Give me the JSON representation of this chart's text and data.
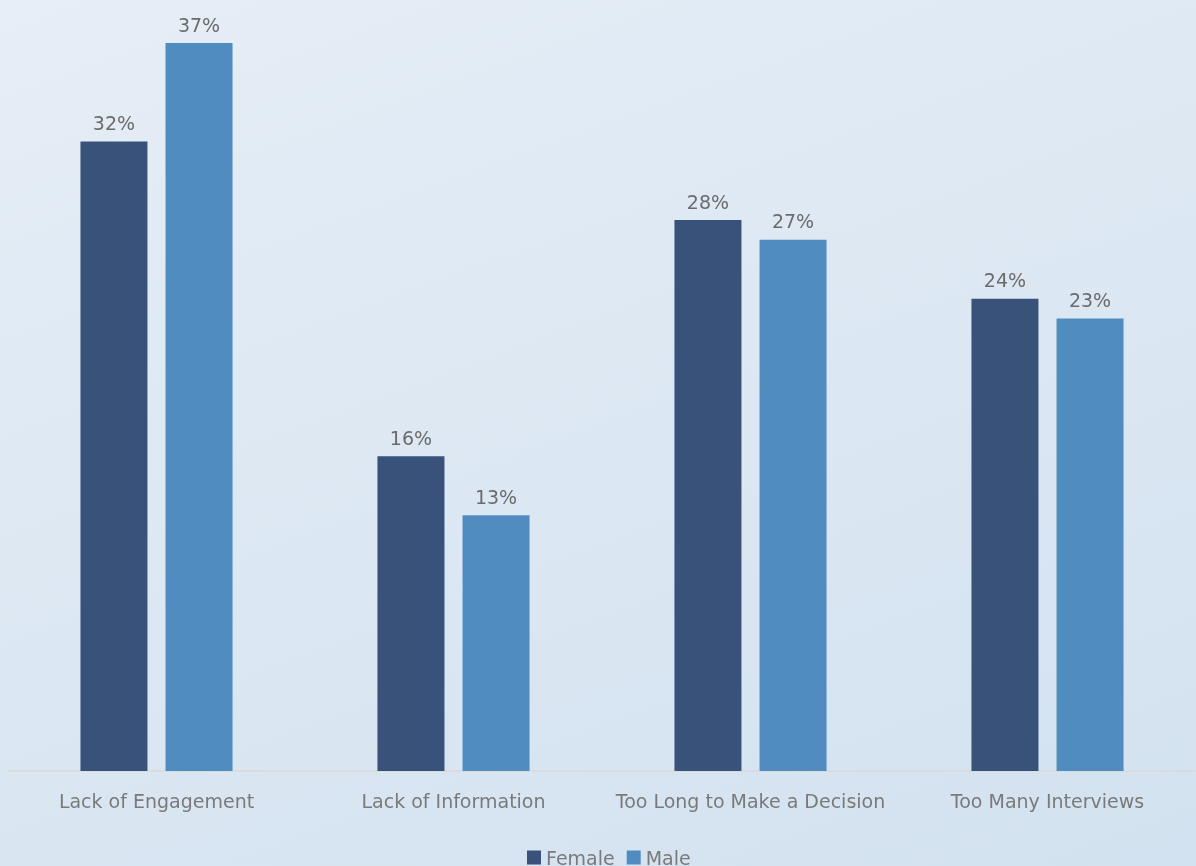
{
  "chart_data": {
    "type": "bar",
    "categories": [
      "Lack of Engagement",
      "Lack of Information",
      "Too Long to Make a Decision",
      "Too Many Interviews"
    ],
    "series": [
      {
        "name": "Female",
        "color": "#39527a",
        "values": [
          32,
          16,
          28,
          24
        ],
        "value_labels": [
          "32%",
          "16%",
          "28%",
          "24%"
        ]
      },
      {
        "name": "Male",
        "color": "#508cc0",
        "values": [
          37,
          13,
          27,
          23
        ],
        "value_labels": [
          "37%",
          "13%",
          "27%",
          "23%"
        ]
      }
    ],
    "legend": "bottom"
  }
}
